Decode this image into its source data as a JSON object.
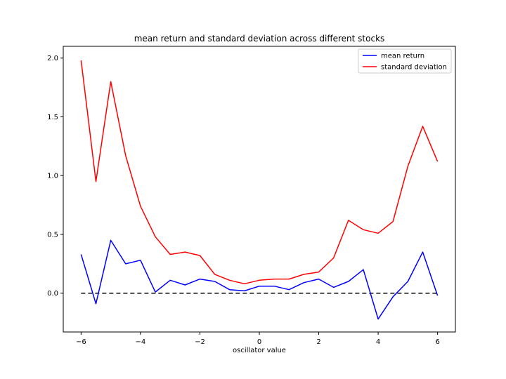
{
  "chart_data": {
    "type": "line",
    "title": "mean return and standard deviation across different stocks",
    "xlabel": "oscillator value",
    "ylabel": "",
    "xlim": [
      -6.6,
      6.6
    ],
    "ylim": [
      -0.33,
      2.1
    ],
    "x_ticks": [
      -6,
      -4,
      -2,
      0,
      2,
      4,
      6
    ],
    "x_tick_labels": [
      "−6",
      "−4",
      "−2",
      "0",
      "2",
      "4",
      "6"
    ],
    "y_ticks": [
      0.0,
      0.5,
      1.0,
      1.5,
      2.0
    ],
    "y_tick_labels": [
      "0.0",
      "0.5",
      "1.0",
      "1.5",
      "2.0"
    ],
    "legend_position": "top-right",
    "grid": false,
    "x": [
      -6,
      -5.5,
      -5,
      -4.5,
      -4,
      -3.5,
      -3,
      -2.5,
      -2,
      -1.5,
      -1,
      -0.5,
      0,
      0.5,
      1,
      1.5,
      2,
      2.5,
      3,
      3.5,
      4,
      4.5,
      5,
      5.5,
      6
    ],
    "series": [
      {
        "name": "mean return",
        "color": "#0000ff",
        "values": [
          0.33,
          -0.09,
          0.45,
          0.25,
          0.28,
          0.01,
          0.11,
          0.07,
          0.12,
          0.1,
          0.03,
          0.02,
          0.06,
          0.06,
          0.03,
          0.09,
          0.12,
          0.05,
          0.1,
          0.2,
          -0.22,
          -0.03,
          0.1,
          0.35,
          -0.02
        ]
      },
      {
        "name": "standard deviation",
        "color": "#ff0000",
        "values": [
          1.98,
          0.95,
          1.8,
          1.17,
          0.74,
          0.48,
          0.33,
          0.35,
          0.32,
          0.16,
          0.11,
          0.08,
          0.11,
          0.12,
          0.12,
          0.16,
          0.18,
          0.3,
          0.62,
          0.54,
          0.51,
          0.61,
          1.08,
          1.42,
          1.12
        ]
      }
    ],
    "reference_line": {
      "y": 0.0,
      "x_range": [
        -6,
        6
      ],
      "color": "#000000",
      "style": "dashed"
    }
  }
}
